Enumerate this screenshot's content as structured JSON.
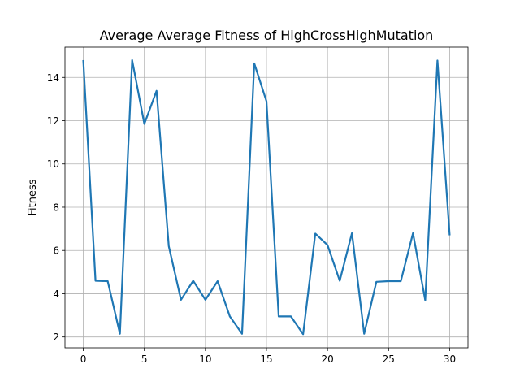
{
  "chart_data": {
    "type": "line",
    "title": "Average Average Fitness of HighCrossHighMutation",
    "xlabel": "",
    "ylabel": "Fitness",
    "xlim": [
      -1.5,
      31.5
    ],
    "ylim": [
      1.5,
      15.4
    ],
    "x_ticks": [
      0,
      5,
      10,
      15,
      20,
      25,
      30
    ],
    "y_ticks": [
      2,
      4,
      6,
      8,
      10,
      12,
      14
    ],
    "grid": true,
    "series": [
      {
        "color": "#1f77b4",
        "x": [
          0,
          1,
          2,
          3,
          4,
          5,
          6,
          7,
          8,
          9,
          10,
          11,
          12,
          13,
          14,
          15,
          16,
          17,
          18,
          19,
          20,
          21,
          22,
          23,
          24,
          25,
          26,
          27,
          28,
          29,
          30
        ],
        "y": [
          14.8,
          4.6,
          4.58,
          2.15,
          14.8,
          11.85,
          13.38,
          6.2,
          3.72,
          4.6,
          3.72,
          4.58,
          2.95,
          2.15,
          14.65,
          12.9,
          2.95,
          2.95,
          2.13,
          6.78,
          6.25,
          4.6,
          6.8,
          2.15,
          4.55,
          4.58,
          4.58,
          6.8,
          3.7,
          14.78,
          6.7
        ]
      }
    ]
  }
}
